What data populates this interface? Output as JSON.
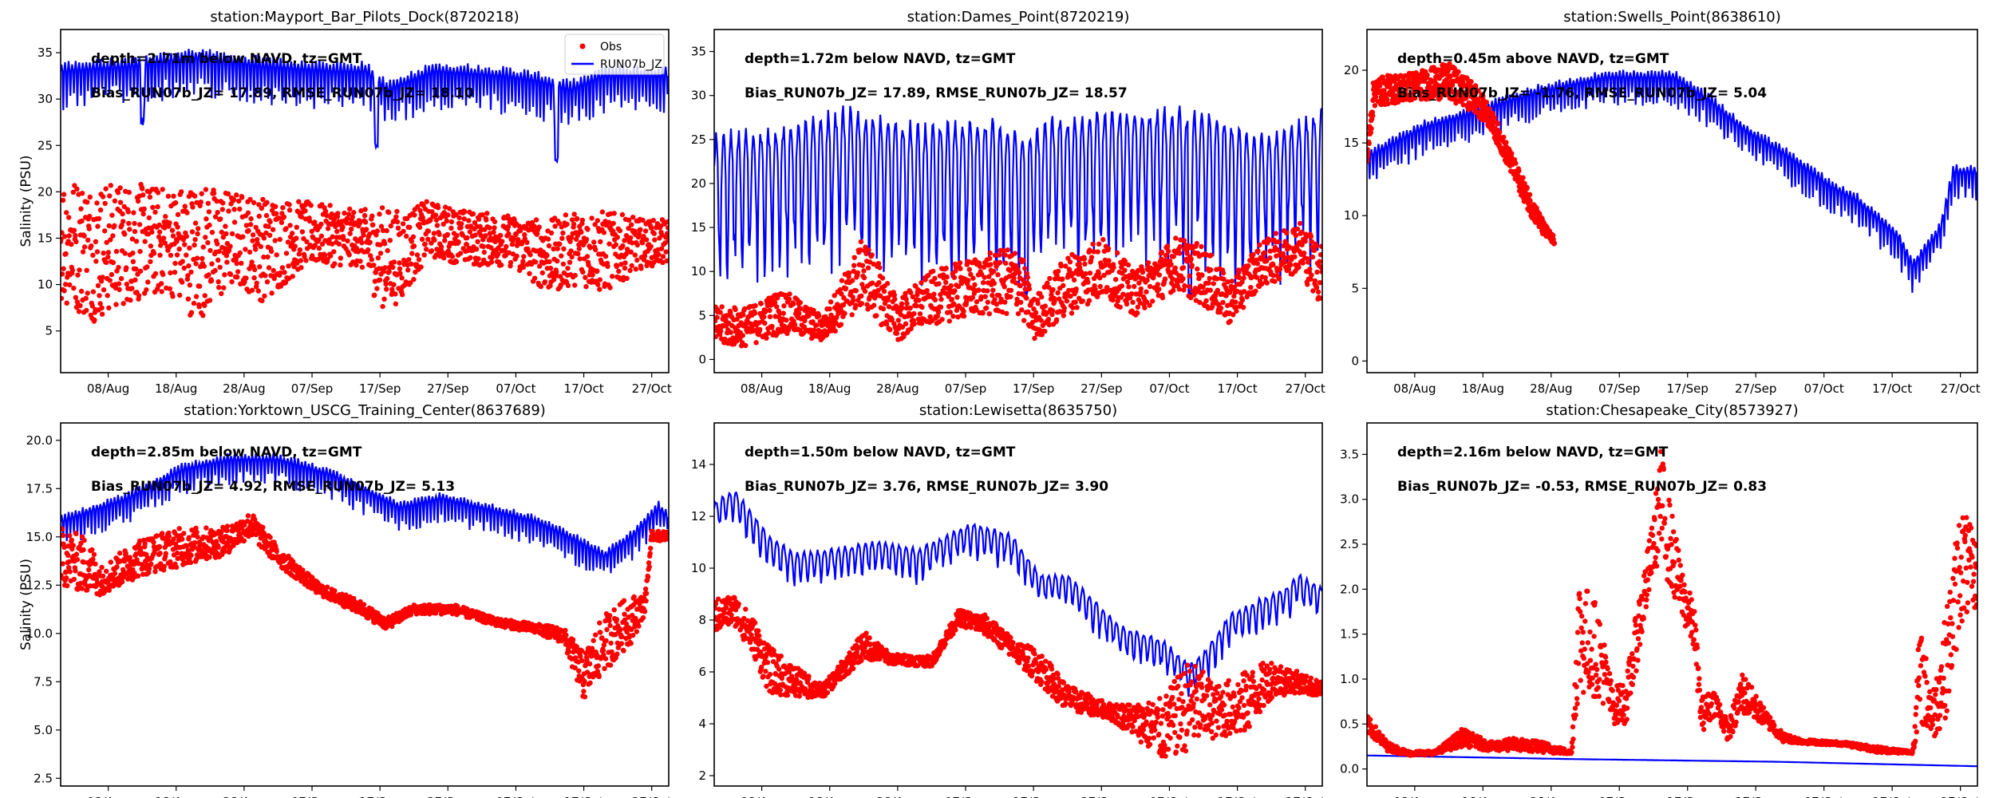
{
  "figure": {
    "ylabel": "Salinity (PSU)",
    "x_ticks": [
      "08/Aug",
      "18/Aug",
      "28/Aug",
      "07/Sep",
      "17/Sep",
      "27/Sep",
      "07/Oct",
      "17/Oct",
      "27/Oct"
    ],
    "x_range_days": [
      0,
      89.5
    ],
    "x_tick_days": [
      7,
      17,
      27,
      37,
      47,
      57,
      67,
      77,
      87
    ],
    "x_origin_label": "01/Aug",
    "colors": {
      "obs": "#ff0000",
      "model": "#0000ff"
    },
    "legend": {
      "obs_label": "Obs",
      "model_label": "RUN07b_JZ",
      "placement": "upper-right",
      "panel": 0
    }
  },
  "chart_data": [
    {
      "type": "scatter+line",
      "title": "station:Mayport_Bar_Pilots_Dock(8720218)",
      "annotation_depth": "depth=2.71m below NAVD, tz=GMT",
      "annotation_stats": "Bias_RUN07b_JZ= 17.89, RMSE_RUN07b_JZ= 18.10",
      "bias": 17.89,
      "rmse": 18.1,
      "ylabel": "Salinity (PSU)",
      "ylim": [
        0.5,
        37.5
      ],
      "y_ticks": [
        5,
        10,
        15,
        20,
        25,
        30,
        35
      ],
      "y_tick_labels": [
        "5",
        "10",
        "15",
        "20",
        "25",
        "30",
        "35"
      ],
      "model": {
        "name": "RUN07b_JZ",
        "base": [
          [
            0,
            33
          ],
          [
            10,
            33.5
          ],
          [
            20,
            34.5
          ],
          [
            30,
            33.5
          ],
          [
            40,
            33
          ],
          [
            45,
            33
          ],
          [
            48,
            31
          ],
          [
            55,
            33
          ],
          [
            65,
            32.5
          ],
          [
            70,
            32
          ],
          [
            75,
            31
          ],
          [
            80,
            32.5
          ],
          [
            89.5,
            32.5
          ]
        ],
        "amp": 2.5,
        "period": 0.52,
        "dips": [
          [
            12,
            27
          ],
          [
            46.5,
            24.7
          ],
          [
            73,
            23
          ]
        ]
      },
      "obs": {
        "name": "Obs",
        "envelope": [
          [
            0,
            8,
            22
          ],
          [
            5,
            6,
            21
          ],
          [
            10,
            8,
            21
          ],
          [
            16,
            9,
            20.5
          ],
          [
            20,
            6,
            21
          ],
          [
            26,
            10,
            20
          ],
          [
            30,
            8,
            19.5
          ],
          [
            36,
            12,
            19
          ],
          [
            44,
            12,
            18
          ],
          [
            47,
            7.5,
            18.5
          ],
          [
            50,
            8,
            18
          ],
          [
            54,
            13,
            19
          ],
          [
            60,
            12,
            18
          ],
          [
            66,
            12,
            17.5
          ],
          [
            72,
            9,
            17
          ],
          [
            76,
            10,
            18
          ],
          [
            80,
            9,
            18
          ],
          [
            86,
            12,
            17
          ],
          [
            89.5,
            12,
            17
          ]
        ]
      }
    },
    {
      "type": "scatter+line",
      "title": "station:Dames_Point(8720219)",
      "annotation_depth": "depth=1.72m below NAVD, tz=GMT",
      "annotation_stats": "Bias_RUN07b_JZ= 17.89, RMSE_RUN07b_JZ= 18.57",
      "bias": 17.89,
      "rmse": 18.57,
      "ylim": [
        -1.5,
        37.5
      ],
      "y_ticks": [
        0,
        5,
        10,
        15,
        20,
        25,
        30,
        35
      ],
      "y_tick_labels": [
        "0",
        "5",
        "10",
        "15",
        "20",
        "25",
        "30",
        "35"
      ],
      "model": {
        "name": "RUN07b_JZ",
        "base": [
          [
            0,
            22
          ],
          [
            10,
            23
          ],
          [
            20,
            25
          ],
          [
            30,
            23
          ],
          [
            40,
            24
          ],
          [
            46,
            22
          ],
          [
            50,
            24
          ],
          [
            60,
            25
          ],
          [
            68,
            25
          ],
          [
            75,
            24
          ],
          [
            80,
            22
          ],
          [
            89.5,
            25
          ]
        ],
        "amp": 9,
        "period": 1.1,
        "dips": [
          [
            46,
            7
          ],
          [
            70,
            7
          ]
        ]
      },
      "obs": {
        "name": "Obs",
        "envelope": [
          [
            0,
            1.5,
            6
          ],
          [
            5,
            1.5,
            6
          ],
          [
            10,
            3,
            8
          ],
          [
            16,
            2,
            5
          ],
          [
            22,
            6,
            14
          ],
          [
            27,
            2,
            7
          ],
          [
            32,
            4,
            10
          ],
          [
            40,
            5,
            12
          ],
          [
            45,
            5,
            13
          ],
          [
            47,
            2,
            7
          ],
          [
            52,
            5,
            12
          ],
          [
            57,
            7,
            14
          ],
          [
            62,
            5,
            10
          ],
          [
            68,
            8,
            14
          ],
          [
            72,
            6,
            13
          ],
          [
            76,
            4,
            9
          ],
          [
            80,
            8,
            13
          ],
          [
            86,
            10,
            16
          ],
          [
            89.5,
            6,
            13
          ]
        ]
      }
    },
    {
      "type": "scatter+line",
      "title": "station:Swells_Point(8638610)",
      "annotation_depth": "depth=0.45m above NAVD, tz=GMT",
      "annotation_stats": "Bias_RUN07b_JZ= -1.76, RMSE_RUN07b_JZ=  5.04",
      "bias": -1.76,
      "rmse": 5.04,
      "ylim": [
        -0.8,
        22.8
      ],
      "y_ticks": [
        0,
        5,
        10,
        15,
        20
      ],
      "y_tick_labels": [
        "0",
        "5",
        "10",
        "15",
        "20"
      ],
      "model": {
        "name": "RUN07b_JZ",
        "base": [
          [
            0,
            14
          ],
          [
            8,
            16
          ],
          [
            15,
            17
          ],
          [
            25,
            18.5
          ],
          [
            35,
            19.5
          ],
          [
            45,
            19.5
          ],
          [
            50,
            18
          ],
          [
            55,
            16
          ],
          [
            62,
            14
          ],
          [
            68,
            12
          ],
          [
            72,
            11
          ],
          [
            78,
            8.5
          ],
          [
            80,
            6.5
          ],
          [
            84,
            9
          ],
          [
            86,
            13
          ],
          [
            89.5,
            13
          ]
        ],
        "amp": 1.2,
        "period": 0.52,
        "dips": []
      },
      "obs": {
        "name": "Obs",
        "envelope": [
          [
            0,
            13,
            15
          ],
          [
            1,
            17.5,
            19.5
          ],
          [
            8,
            18,
            20
          ],
          [
            12,
            18,
            20.5
          ],
          [
            16,
            17,
            19
          ],
          [
            18,
            16,
            17.5
          ],
          [
            20,
            14,
            15.5
          ],
          [
            22,
            12,
            13.5
          ],
          [
            24,
            10,
            11.5
          ],
          [
            26,
            8.5,
            9.5
          ],
          [
            27.5,
            8,
            8.5
          ]
        ]
      }
    },
    {
      "type": "scatter+line",
      "title": "station:Yorktown_USCG_Training_Center(8637689)",
      "annotation_depth": "depth=2.85m below NAVD, tz=GMT",
      "annotation_stats": "Bias_RUN07b_JZ=  4.92, RMSE_RUN07b_JZ=  5.13",
      "bias": 4.92,
      "rmse": 5.13,
      "ylabel": "Salinity (PSU)",
      "ylim": [
        2.1,
        20.9
      ],
      "y_ticks": [
        2.5,
        5.0,
        7.5,
        10.0,
        12.5,
        15.0,
        17.5,
        20.0
      ],
      "y_tick_labels": [
        "2.5",
        "5.0",
        "7.5",
        "10.0",
        "12.5",
        "15.0",
        "17.5",
        "20.0"
      ],
      "model": {
        "name": "RUN07b_JZ",
        "base": [
          [
            0,
            15.8
          ],
          [
            10,
            17
          ],
          [
            18,
            18.5
          ],
          [
            25,
            19
          ],
          [
            32,
            19
          ],
          [
            40,
            18.2
          ],
          [
            46,
            17.2
          ],
          [
            50,
            16.5
          ],
          [
            56,
            17
          ],
          [
            62,
            16.5
          ],
          [
            70,
            15.8
          ],
          [
            76,
            14.8
          ],
          [
            80,
            14
          ],
          [
            84,
            15
          ],
          [
            88,
            16.5
          ],
          [
            89.5,
            16
          ]
        ],
        "amp": 0.8,
        "period": 0.52,
        "dips": []
      },
      "obs": {
        "name": "Obs",
        "envelope": [
          [
            0,
            12.5,
            15.5
          ],
          [
            4,
            12,
            15
          ],
          [
            6,
            12,
            13.5
          ],
          [
            12,
            13,
            15
          ],
          [
            18,
            13.5,
            15.5
          ],
          [
            24,
            14,
            15.5
          ],
          [
            28,
            15,
            16.3
          ],
          [
            32,
            13.5,
            14.5
          ],
          [
            38,
            12,
            12.6
          ],
          [
            44,
            11,
            11.7
          ],
          [
            48,
            10.2,
            10.8
          ],
          [
            52,
            11,
            11.5
          ],
          [
            58,
            11,
            11.5
          ],
          [
            64,
            10.4,
            10.8
          ],
          [
            70,
            10,
            10.5
          ],
          [
            74,
            9.5,
            10.3
          ],
          [
            77,
            6.5,
            9
          ],
          [
            80,
            8,
            11
          ],
          [
            84,
            9.5,
            12
          ],
          [
            86,
            11,
            12
          ],
          [
            87,
            14.8,
            15.3
          ],
          [
            89.5,
            14.8,
            15.3
          ]
        ]
      }
    },
    {
      "type": "scatter+line",
      "title": "station:Lewisetta(8635750)",
      "annotation_depth": "depth=1.50m below NAVD, tz=GMT",
      "annotation_stats": "Bias_RUN07b_JZ=  3.76, RMSE_RUN07b_JZ=  3.90",
      "bias": 3.76,
      "rmse": 3.9,
      "ylim": [
        1.6,
        15.6
      ],
      "y_ticks": [
        2,
        4,
        6,
        8,
        10,
        12,
        14
      ],
      "y_tick_labels": [
        "2",
        "4",
        "6",
        "8",
        "10",
        "12",
        "14"
      ],
      "model": {
        "name": "RUN07b_JZ",
        "base": [
          [
            0,
            12.3
          ],
          [
            3,
            12.8
          ],
          [
            8,
            11
          ],
          [
            12,
            10.3
          ],
          [
            18,
            10.5
          ],
          [
            24,
            10.8
          ],
          [
            30,
            10.5
          ],
          [
            34,
            11
          ],
          [
            38,
            11.5
          ],
          [
            44,
            11
          ],
          [
            48,
            9.5
          ],
          [
            52,
            9.5
          ],
          [
            56,
            8.5
          ],
          [
            60,
            7.5
          ],
          [
            66,
            7
          ],
          [
            70,
            6
          ],
          [
            72,
            6.5
          ],
          [
            76,
            8
          ],
          [
            80,
            8.5
          ],
          [
            84,
            9
          ],
          [
            86,
            9.5
          ],
          [
            89.5,
            9
          ]
        ],
        "amp": 0.7,
        "period": 1.0,
        "dips": []
      },
      "obs": {
        "name": "Obs",
        "envelope": [
          [
            0,
            7.5,
            8.8
          ],
          [
            3,
            7.8,
            9
          ],
          [
            6,
            6.5,
            8
          ],
          [
            8,
            5.2,
            7
          ],
          [
            12,
            5,
            6.2
          ],
          [
            16,
            5,
            5.5
          ],
          [
            20,
            6,
            6.8
          ],
          [
            22,
            6.5,
            7.6
          ],
          [
            26,
            6.3,
            6.7
          ],
          [
            32,
            6.2,
            6.6
          ],
          [
            36,
            7.8,
            8.4
          ],
          [
            40,
            7.4,
            8.2
          ],
          [
            44,
            6.5,
            7.3
          ],
          [
            48,
            5.5,
            6.8
          ],
          [
            52,
            4.5,
            5.5
          ],
          [
            58,
            4.2,
            4.8
          ],
          [
            62,
            3.5,
            4.8
          ],
          [
            66,
            2.5,
            5
          ],
          [
            70,
            3,
            6.5
          ],
          [
            74,
            3.5,
            5.5
          ],
          [
            78,
            3.5,
            6
          ],
          [
            82,
            5,
            6.5
          ],
          [
            86,
            5.2,
            6
          ],
          [
            89.5,
            5,
            5.6
          ]
        ]
      }
    },
    {
      "type": "scatter+line",
      "title": "station:Chesapeake_City(8573927)",
      "annotation_depth": "depth=2.16m below NAVD, tz=GMT",
      "annotation_stats": "Bias_RUN07b_JZ= -0.53, RMSE_RUN07b_JZ=  0.83",
      "bias": -0.53,
      "rmse": 0.83,
      "ylim": [
        -0.19,
        3.85
      ],
      "y_ticks": [
        0.0,
        0.5,
        1.0,
        1.5,
        2.0,
        2.5,
        3.0,
        3.5
      ],
      "y_tick_labels": [
        "0.0",
        "0.5",
        "1.0",
        "1.5",
        "2.0",
        "2.5",
        "3.0",
        "3.5"
      ],
      "model": {
        "name": "RUN07b_JZ",
        "base": [
          [
            0,
            0.15
          ],
          [
            30,
            0.11
          ],
          [
            60,
            0.08
          ],
          [
            89.5,
            0.03
          ]
        ],
        "amp": 0.0,
        "period": 1.0,
        "dips": []
      },
      "obs": {
        "name": "Obs",
        "envelope": [
          [
            0,
            0.4,
            0.6
          ],
          [
            3,
            0.2,
            0.3
          ],
          [
            6,
            0.15,
            0.2
          ],
          [
            10,
            0.16,
            0.2
          ],
          [
            14,
            0.25,
            0.45
          ],
          [
            18,
            0.2,
            0.3
          ],
          [
            22,
            0.2,
            0.35
          ],
          [
            26,
            0.18,
            0.3
          ],
          [
            30,
            0.16,
            0.2
          ],
          [
            31,
            0.8,
            2.2
          ],
          [
            34,
            0.8,
            1.8
          ],
          [
            36,
            0.5,
            0.9
          ],
          [
            38,
            0.5,
            1.0
          ],
          [
            40,
            1.3,
            2.0
          ],
          [
            42,
            2.2,
            2.8
          ],
          [
            43,
            2.3,
            3.6
          ],
          [
            46,
            1.7,
            2.3
          ],
          [
            48,
            1.3,
            1.8
          ],
          [
            49,
            0.4,
            0.8
          ],
          [
            51,
            0.6,
            0.9
          ],
          [
            53,
            0.3,
            0.5
          ],
          [
            55,
            0.6,
            1.1
          ],
          [
            58,
            0.5,
            0.7
          ],
          [
            61,
            0.3,
            0.4
          ],
          [
            64,
            0.28,
            0.33
          ],
          [
            70,
            0.26,
            0.3
          ],
          [
            75,
            0.18,
            0.25
          ],
          [
            80,
            0.17,
            0.2
          ],
          [
            81,
            0.5,
            1.6
          ],
          [
            83,
            0.3,
            0.9
          ],
          [
            85,
            0.6,
            1.8
          ],
          [
            87,
            1.6,
            3.0
          ],
          [
            89.5,
            1.8,
            2.5
          ]
        ]
      }
    }
  ]
}
